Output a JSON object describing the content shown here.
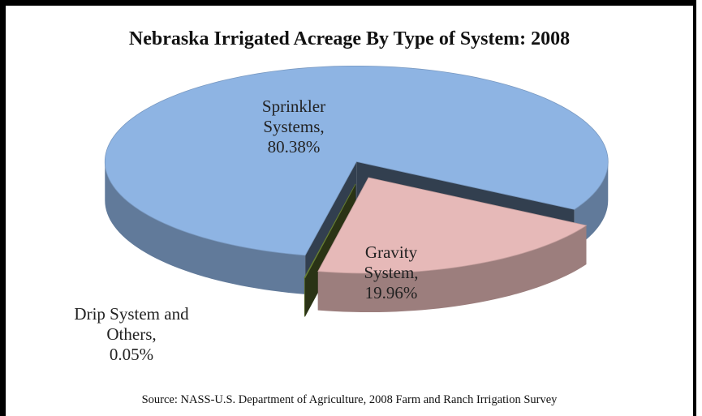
{
  "chart_data": {
    "type": "pie",
    "title": "Nebraska Irrigated Acreage By Type of System:  2008",
    "categories": [
      "Sprinkler Systems,",
      "Gravity System,",
      "Drip System and Others,"
    ],
    "values": [
      80.38,
      19.96,
      0.05
    ],
    "value_labels": [
      "80.38%",
      "19.96%",
      "0.05%"
    ],
    "colors": [
      "#8eb4e3",
      "#e6b9b8",
      "#77933c"
    ],
    "source": "Source:  NASS-U.S. Department of Agriculture, 2008 Farm and Ranch Irrigation Survey"
  }
}
